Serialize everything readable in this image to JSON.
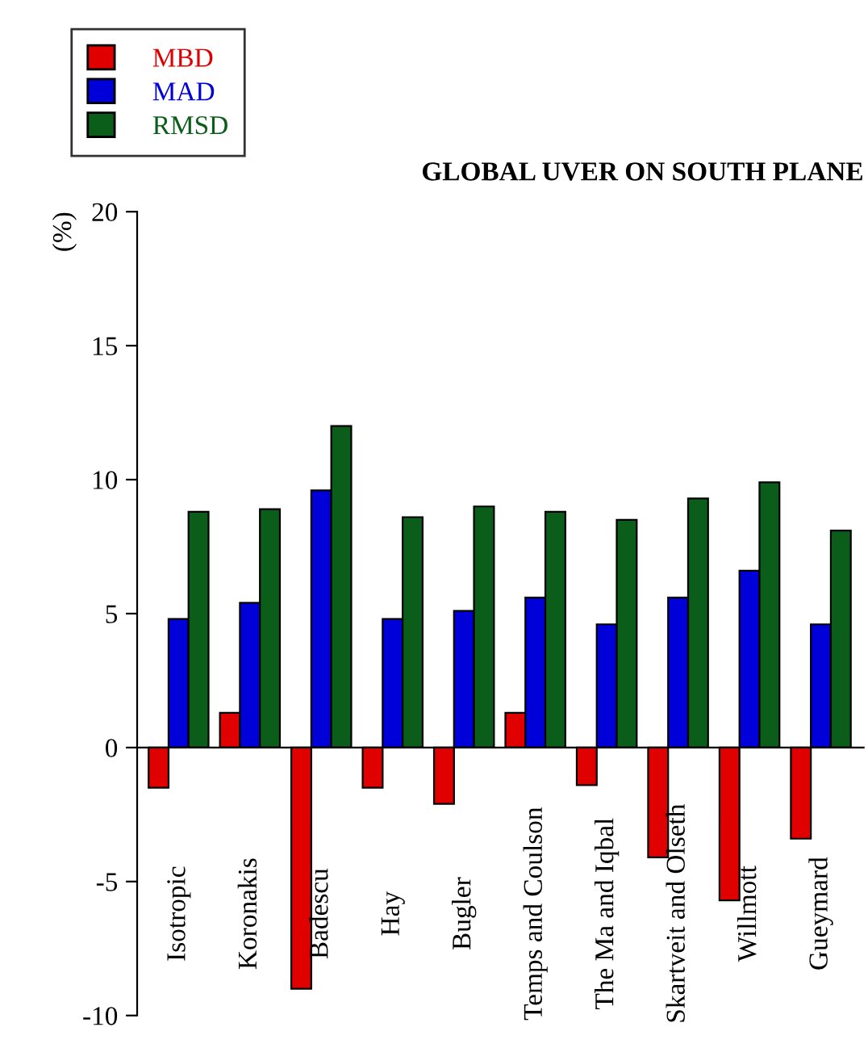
{
  "chart_data": {
    "type": "bar",
    "title": "GLOBAL UVER ON SOUTH PLANE",
    "ylabel": "(%)",
    "categories": [
      "Isotropic",
      "Koronakis",
      "Badescu",
      "Hay",
      "Bugler",
      "Temps and Coulson",
      "The Ma and Iqbal",
      "Skartveit and Olseth",
      "Willmott",
      "Gueymard"
    ],
    "series": [
      {
        "name": "MBD",
        "color": "#e00000",
        "values": [
          -1.5,
          1.3,
          -9.0,
          -1.5,
          -2.1,
          1.3,
          -1.4,
          -4.1,
          -5.7,
          -3.4
        ]
      },
      {
        "name": "MAD",
        "color": "#0000d8",
        "values": [
          4.8,
          5.4,
          9.6,
          4.8,
          5.1,
          5.6,
          4.6,
          5.6,
          6.6,
          4.6
        ]
      },
      {
        "name": "RMSD",
        "color": "#0b5e1a",
        "values": [
          8.8,
          8.9,
          12.0,
          8.6,
          9.0,
          8.8,
          8.5,
          9.3,
          9.9,
          8.1
        ]
      }
    ],
    "ylim": [
      -10,
      20
    ],
    "yticks": [
      -10,
      -5,
      0,
      5,
      10,
      15,
      20
    ],
    "grid": false,
    "legend": "top left"
  }
}
